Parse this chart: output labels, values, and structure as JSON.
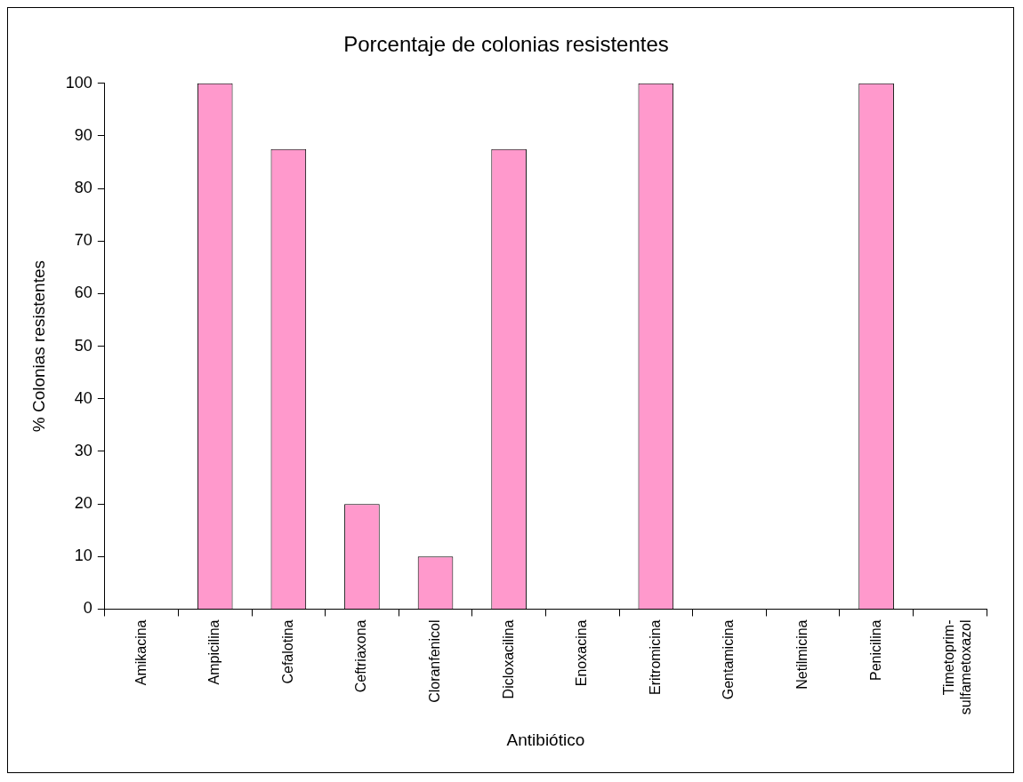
{
  "chart_data": {
    "type": "bar",
    "title": "Porcentaje de colonias resistentes",
    "xlabel": "Antibiótico",
    "ylabel": "% Colonias resistentes",
    "categories": [
      "Amikacina",
      "Ampicilina",
      "Cefalotina",
      "Ceftriaxona",
      "Cloranfenicol",
      "Dicloxacilina",
      "Enoxacina",
      "Eritromicina",
      "Gentamicina",
      "Netilmicina",
      "Penicilina",
      "Timetoprim-sulfametoxazol"
    ],
    "values": [
      0,
      100,
      87.5,
      20,
      10,
      87.5,
      0,
      100,
      0,
      0,
      100,
      0
    ],
    "color": "#ff99cc",
    "ylim": [
      0,
      100
    ],
    "yticks": [
      0,
      10,
      20,
      30,
      40,
      50,
      60,
      70,
      80,
      90,
      100
    ],
    "grid": false,
    "legend": false
  }
}
